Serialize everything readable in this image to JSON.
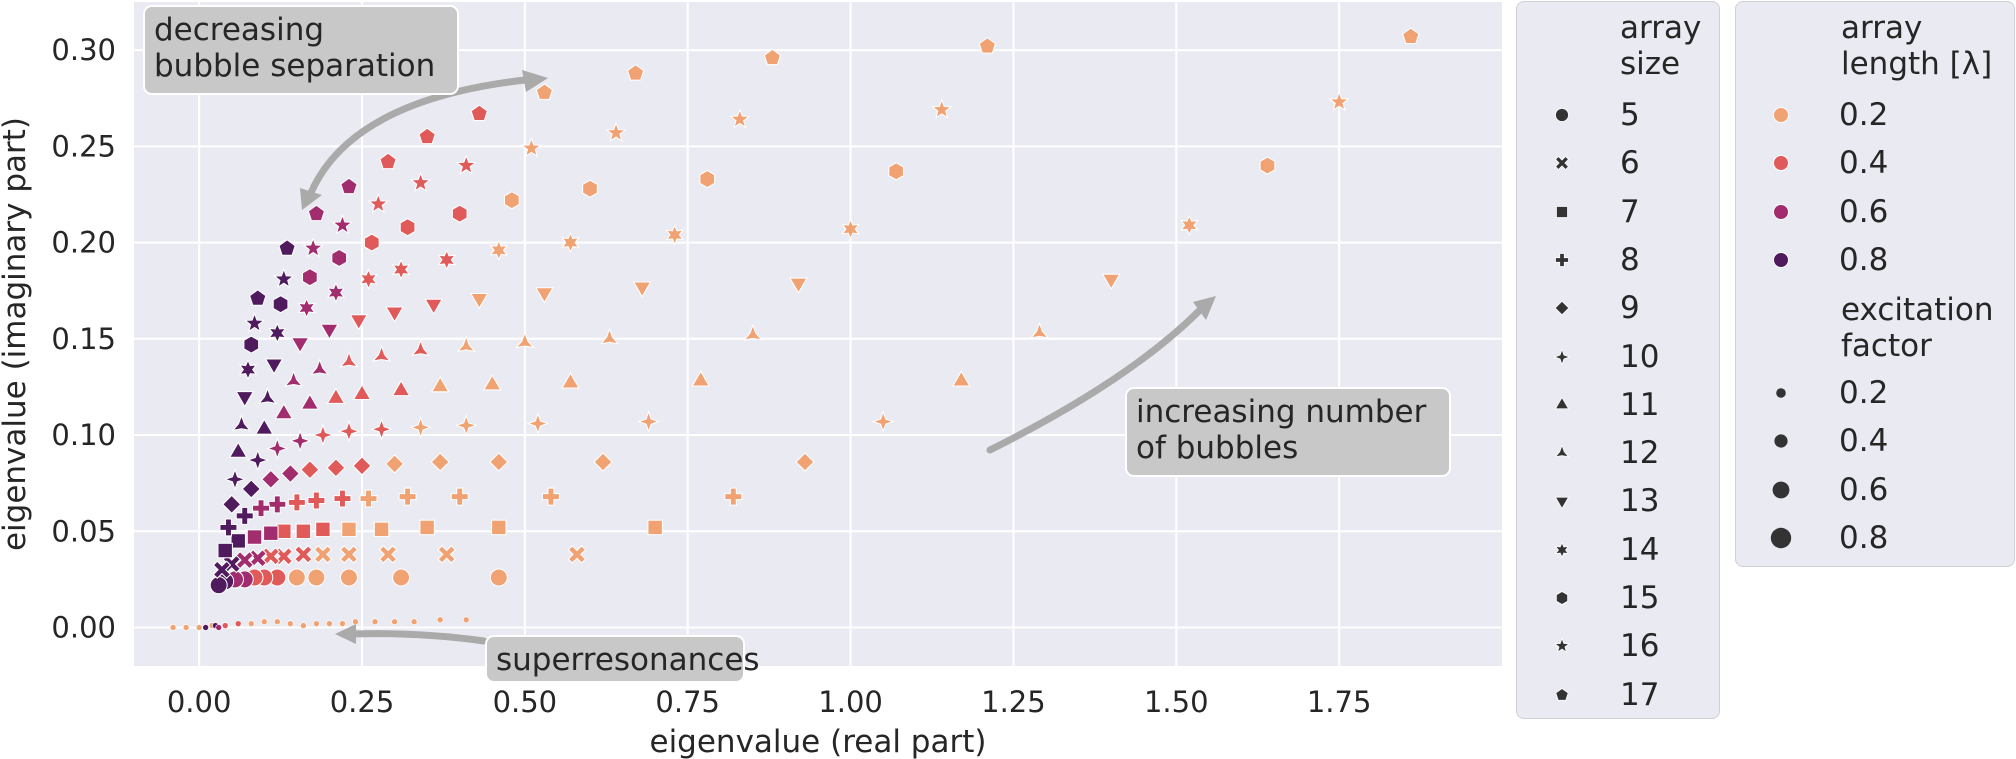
{
  "chart_data": {
    "type": "scatter",
    "title": "",
    "xlabel": "eigenvalue (real part)",
    "ylabel": "eigenvalue (imaginary part)",
    "xlim": [
      -0.1,
      2.0
    ],
    "ylim": [
      -0.02,
      0.325
    ],
    "xticks": [
      0.0,
      0.25,
      0.5,
      0.75,
      1.0,
      1.25,
      1.5,
      1.75
    ],
    "xtick_labels": [
      "0.00",
      "0.25",
      "0.50",
      "0.75",
      "1.00",
      "1.25",
      "1.50",
      "1.75"
    ],
    "yticks": [
      0.0,
      0.05,
      0.1,
      0.15,
      0.2,
      0.25,
      0.3
    ],
    "ytick_labels": [
      "0.00",
      "0.05",
      "0.10",
      "0.15",
      "0.20",
      "0.25",
      "0.30"
    ],
    "grid": true,
    "background": "#eaeaf2",
    "palette": {
      "0.2": "#f0a273",
      "0.4": "#e05a5a",
      "0.6": "#a12d6e",
      "0.8": "#4f1b5e"
    },
    "annotations": [
      {
        "text": "decreasing\nbubble separation"
      },
      {
        "text": "increasing number\nof bubbles"
      },
      {
        "text": "superresonances"
      }
    ],
    "legend": {
      "placement": "outside-right",
      "size_title": "array\nsize",
      "sizes": [
        {
          "label": "5",
          "marker": "circle"
        },
        {
          "label": "6",
          "marker": "x"
        },
        {
          "label": "7",
          "marker": "square"
        },
        {
          "label": "8",
          "marker": "plus"
        },
        {
          "label": "9",
          "marker": "diamond"
        },
        {
          "label": "10",
          "marker": "star4"
        },
        {
          "label": "11",
          "marker": "triangle-up"
        },
        {
          "label": "12",
          "marker": "tri-star"
        },
        {
          "label": "13",
          "marker": "triangle-down"
        },
        {
          "label": "14",
          "marker": "star6"
        },
        {
          "label": "15",
          "marker": "hexagon"
        },
        {
          "label": "16",
          "marker": "star5"
        },
        {
          "label": "17",
          "marker": "pentagon"
        }
      ],
      "length_title": "array\nlength [λ]",
      "lengths": [
        {
          "label": "0.2",
          "color": "#f0a273"
        },
        {
          "label": "0.4",
          "color": "#e05a5a"
        },
        {
          "label": "0.6",
          "color": "#a12d6e"
        },
        {
          "label": "0.8",
          "color": "#4f1b5e"
        }
      ],
      "excitation_title": "excitation\nfactor",
      "excitations": [
        {
          "label": "0.2",
          "size": 0.2
        },
        {
          "label": "0.4",
          "size": 0.4
        },
        {
          "label": "0.6",
          "size": 0.6
        },
        {
          "label": "0.8",
          "size": 0.8
        }
      ]
    },
    "series": [
      {
        "size": 5,
        "marker": "circle",
        "points": [
          [
            0.46,
            0.026,
            0.2
          ],
          [
            0.31,
            0.026,
            0.2
          ],
          [
            0.23,
            0.026,
            0.2
          ],
          [
            0.18,
            0.026,
            0.2
          ],
          [
            0.15,
            0.026,
            0.2
          ],
          [
            0.12,
            0.026,
            0.4
          ],
          [
            0.1,
            0.026,
            0.4
          ],
          [
            0.085,
            0.026,
            0.4
          ],
          [
            0.07,
            0.025,
            0.6
          ],
          [
            0.055,
            0.025,
            0.6
          ],
          [
            0.04,
            0.024,
            0.8
          ],
          [
            0.03,
            0.022,
            0.8
          ]
        ]
      },
      {
        "size": 6,
        "marker": "x",
        "points": [
          [
            0.58,
            0.038,
            0.2
          ],
          [
            0.38,
            0.038,
            0.2
          ],
          [
            0.29,
            0.038,
            0.2
          ],
          [
            0.23,
            0.038,
            0.2
          ],
          [
            0.19,
            0.038,
            0.2
          ],
          [
            0.16,
            0.038,
            0.4
          ],
          [
            0.13,
            0.037,
            0.4
          ],
          [
            0.11,
            0.037,
            0.4
          ],
          [
            0.09,
            0.036,
            0.6
          ],
          [
            0.07,
            0.035,
            0.6
          ],
          [
            0.05,
            0.033,
            0.8
          ],
          [
            0.035,
            0.03,
            0.8
          ]
        ]
      },
      {
        "size": 7,
        "marker": "square",
        "points": [
          [
            0.7,
            0.052,
            0.2
          ],
          [
            0.46,
            0.052,
            0.2
          ],
          [
            0.35,
            0.052,
            0.2
          ],
          [
            0.28,
            0.051,
            0.2
          ],
          [
            0.23,
            0.051,
            0.2
          ],
          [
            0.19,
            0.051,
            0.4
          ],
          [
            0.16,
            0.05,
            0.4
          ],
          [
            0.13,
            0.05,
            0.4
          ],
          [
            0.11,
            0.049,
            0.6
          ],
          [
            0.085,
            0.047,
            0.6
          ],
          [
            0.06,
            0.045,
            0.8
          ],
          [
            0.04,
            0.04,
            0.8
          ]
        ]
      },
      {
        "size": 8,
        "marker": "plus",
        "points": [
          [
            0.82,
            0.068,
            0.2
          ],
          [
            0.54,
            0.068,
            0.2
          ],
          [
            0.4,
            0.068,
            0.2
          ],
          [
            0.32,
            0.068,
            0.2
          ],
          [
            0.26,
            0.067,
            0.2
          ],
          [
            0.22,
            0.067,
            0.4
          ],
          [
            0.18,
            0.066,
            0.4
          ],
          [
            0.15,
            0.065,
            0.4
          ],
          [
            0.12,
            0.064,
            0.6
          ],
          [
            0.095,
            0.062,
            0.6
          ],
          [
            0.07,
            0.058,
            0.8
          ],
          [
            0.045,
            0.052,
            0.8
          ]
        ]
      },
      {
        "size": 9,
        "marker": "diamond",
        "points": [
          [
            0.93,
            0.086,
            0.2
          ],
          [
            0.62,
            0.086,
            0.2
          ],
          [
            0.46,
            0.086,
            0.2
          ],
          [
            0.37,
            0.086,
            0.2
          ],
          [
            0.3,
            0.085,
            0.2
          ],
          [
            0.25,
            0.084,
            0.4
          ],
          [
            0.21,
            0.083,
            0.4
          ],
          [
            0.17,
            0.082,
            0.4
          ],
          [
            0.14,
            0.08,
            0.6
          ],
          [
            0.11,
            0.077,
            0.6
          ],
          [
            0.08,
            0.072,
            0.8
          ],
          [
            0.05,
            0.064,
            0.8
          ]
        ]
      },
      {
        "size": 10,
        "marker": "star4",
        "points": [
          [
            1.05,
            0.107,
            0.2
          ],
          [
            0.69,
            0.107,
            0.2
          ],
          [
            0.52,
            0.106,
            0.2
          ],
          [
            0.41,
            0.105,
            0.2
          ],
          [
            0.34,
            0.104,
            0.2
          ],
          [
            0.28,
            0.103,
            0.4
          ],
          [
            0.23,
            0.102,
            0.4
          ],
          [
            0.19,
            0.1,
            0.4
          ],
          [
            0.155,
            0.097,
            0.6
          ],
          [
            0.12,
            0.093,
            0.6
          ],
          [
            0.09,
            0.087,
            0.8
          ],
          [
            0.055,
            0.077,
            0.8
          ]
        ]
      },
      {
        "size": 11,
        "marker": "triangle-up",
        "points": [
          [
            1.17,
            0.128,
            0.2
          ],
          [
            0.77,
            0.128,
            0.2
          ],
          [
            0.57,
            0.127,
            0.2
          ],
          [
            0.45,
            0.126,
            0.2
          ],
          [
            0.37,
            0.125,
            0.2
          ],
          [
            0.31,
            0.123,
            0.4
          ],
          [
            0.25,
            0.121,
            0.4
          ],
          [
            0.21,
            0.119,
            0.4
          ],
          [
            0.17,
            0.116,
            0.6
          ],
          [
            0.13,
            0.111,
            0.6
          ],
          [
            0.1,
            0.103,
            0.8
          ],
          [
            0.06,
            0.091,
            0.8
          ]
        ]
      },
      {
        "size": 12,
        "marker": "tri-star",
        "points": [
          [
            1.29,
            0.153,
            0.2
          ],
          [
            0.85,
            0.152,
            0.2
          ],
          [
            0.63,
            0.15,
            0.2
          ],
          [
            0.5,
            0.148,
            0.2
          ],
          [
            0.41,
            0.146,
            0.2
          ],
          [
            0.34,
            0.144,
            0.4
          ],
          [
            0.28,
            0.141,
            0.4
          ],
          [
            0.23,
            0.138,
            0.4
          ],
          [
            0.185,
            0.134,
            0.6
          ],
          [
            0.145,
            0.128,
            0.6
          ],
          [
            0.105,
            0.119,
            0.8
          ],
          [
            0.065,
            0.105,
            0.8
          ]
        ]
      },
      {
        "size": 13,
        "marker": "triangle-down",
        "points": [
          [
            1.4,
            0.181,
            0.2
          ],
          [
            0.92,
            0.179,
            0.2
          ],
          [
            0.68,
            0.177,
            0.2
          ],
          [
            0.53,
            0.174,
            0.2
          ],
          [
            0.43,
            0.171,
            0.2
          ],
          [
            0.36,
            0.168,
            0.4
          ],
          [
            0.3,
            0.164,
            0.4
          ],
          [
            0.245,
            0.16,
            0.4
          ],
          [
            0.2,
            0.155,
            0.6
          ],
          [
            0.155,
            0.148,
            0.6
          ],
          [
            0.115,
            0.137,
            0.8
          ],
          [
            0.07,
            0.12,
            0.8
          ]
        ]
      },
      {
        "size": 14,
        "marker": "star6",
        "points": [
          [
            1.52,
            0.209,
            0.2
          ],
          [
            1.0,
            0.207,
            0.2
          ],
          [
            0.73,
            0.204,
            0.2
          ],
          [
            0.57,
            0.2,
            0.2
          ],
          [
            0.46,
            0.196,
            0.2
          ],
          [
            0.38,
            0.191,
            0.4
          ],
          [
            0.31,
            0.186,
            0.4
          ],
          [
            0.26,
            0.181,
            0.4
          ],
          [
            0.21,
            0.174,
            0.6
          ],
          [
            0.165,
            0.166,
            0.6
          ],
          [
            0.12,
            0.153,
            0.8
          ],
          [
            0.075,
            0.134,
            0.8
          ]
        ]
      },
      {
        "size": 15,
        "marker": "hexagon",
        "points": [
          [
            1.64,
            0.24,
            0.2
          ],
          [
            1.07,
            0.237,
            0.2
          ],
          [
            0.78,
            0.233,
            0.2
          ],
          [
            0.6,
            0.228,
            0.2
          ],
          [
            0.48,
            0.222,
            0.2
          ],
          [
            0.4,
            0.215,
            0.4
          ],
          [
            0.32,
            0.208,
            0.4
          ],
          [
            0.265,
            0.2,
            0.4
          ],
          [
            0.215,
            0.192,
            0.6
          ],
          [
            0.17,
            0.182,
            0.6
          ],
          [
            0.125,
            0.168,
            0.8
          ],
          [
            0.08,
            0.147,
            0.8
          ]
        ]
      },
      {
        "size": 16,
        "marker": "star5",
        "points": [
          [
            1.75,
            0.273,
            0.2
          ],
          [
            1.14,
            0.269,
            0.2
          ],
          [
            0.83,
            0.264,
            0.2
          ],
          [
            0.64,
            0.257,
            0.2
          ],
          [
            0.51,
            0.249,
            0.2
          ],
          [
            0.41,
            0.24,
            0.4
          ],
          [
            0.34,
            0.231,
            0.4
          ],
          [
            0.275,
            0.22,
            0.4
          ],
          [
            0.22,
            0.209,
            0.6
          ],
          [
            0.175,
            0.197,
            0.6
          ],
          [
            0.13,
            0.181,
            0.8
          ],
          [
            0.085,
            0.158,
            0.8
          ]
        ]
      },
      {
        "size": 17,
        "marker": "pentagon",
        "points": [
          [
            1.86,
            0.307,
            0.2
          ],
          [
            1.21,
            0.302,
            0.2
          ],
          [
            0.88,
            0.296,
            0.2
          ],
          [
            0.67,
            0.288,
            0.2
          ],
          [
            0.53,
            0.278,
            0.2
          ],
          [
            0.43,
            0.267,
            0.4
          ],
          [
            0.35,
            0.255,
            0.4
          ],
          [
            0.29,
            0.242,
            0.4
          ],
          [
            0.23,
            0.229,
            0.6
          ],
          [
            0.18,
            0.215,
            0.6
          ],
          [
            0.135,
            0.197,
            0.8
          ],
          [
            0.09,
            0.171,
            0.8
          ]
        ]
      },
      {
        "size": 0,
        "marker": "circle",
        "name": "superresonances",
        "points": [
          [
            -0.04,
            0.0,
            0.2
          ],
          [
            -0.02,
            0.0,
            0.2
          ],
          [
            0.0,
            0.0,
            0.2
          ],
          [
            0.02,
            0.001,
            0.2
          ],
          [
            0.04,
            0.001,
            0.4
          ],
          [
            0.06,
            0.002,
            0.4
          ],
          [
            0.08,
            0.002,
            0.2
          ],
          [
            0.1,
            0.003,
            0.2
          ],
          [
            0.12,
            0.003,
            0.2
          ],
          [
            0.14,
            0.002,
            0.2
          ],
          [
            0.16,
            0.001,
            0.2
          ],
          [
            0.18,
            0.002,
            0.2
          ],
          [
            0.2,
            0.002,
            0.2
          ],
          [
            0.22,
            0.002,
            0.2
          ],
          [
            0.24,
            0.003,
            0.2
          ],
          [
            0.27,
            0.003,
            0.2
          ],
          [
            0.3,
            0.003,
            0.2
          ],
          [
            0.33,
            0.003,
            0.2
          ],
          [
            0.37,
            0.004,
            0.2
          ],
          [
            0.41,
            0.004,
            0.2
          ],
          [
            0.01,
            0.0,
            0.8
          ],
          [
            0.025,
            0.001,
            0.8
          ],
          [
            0.03,
            0.0,
            0.6
          ]
        ]
      }
    ]
  }
}
